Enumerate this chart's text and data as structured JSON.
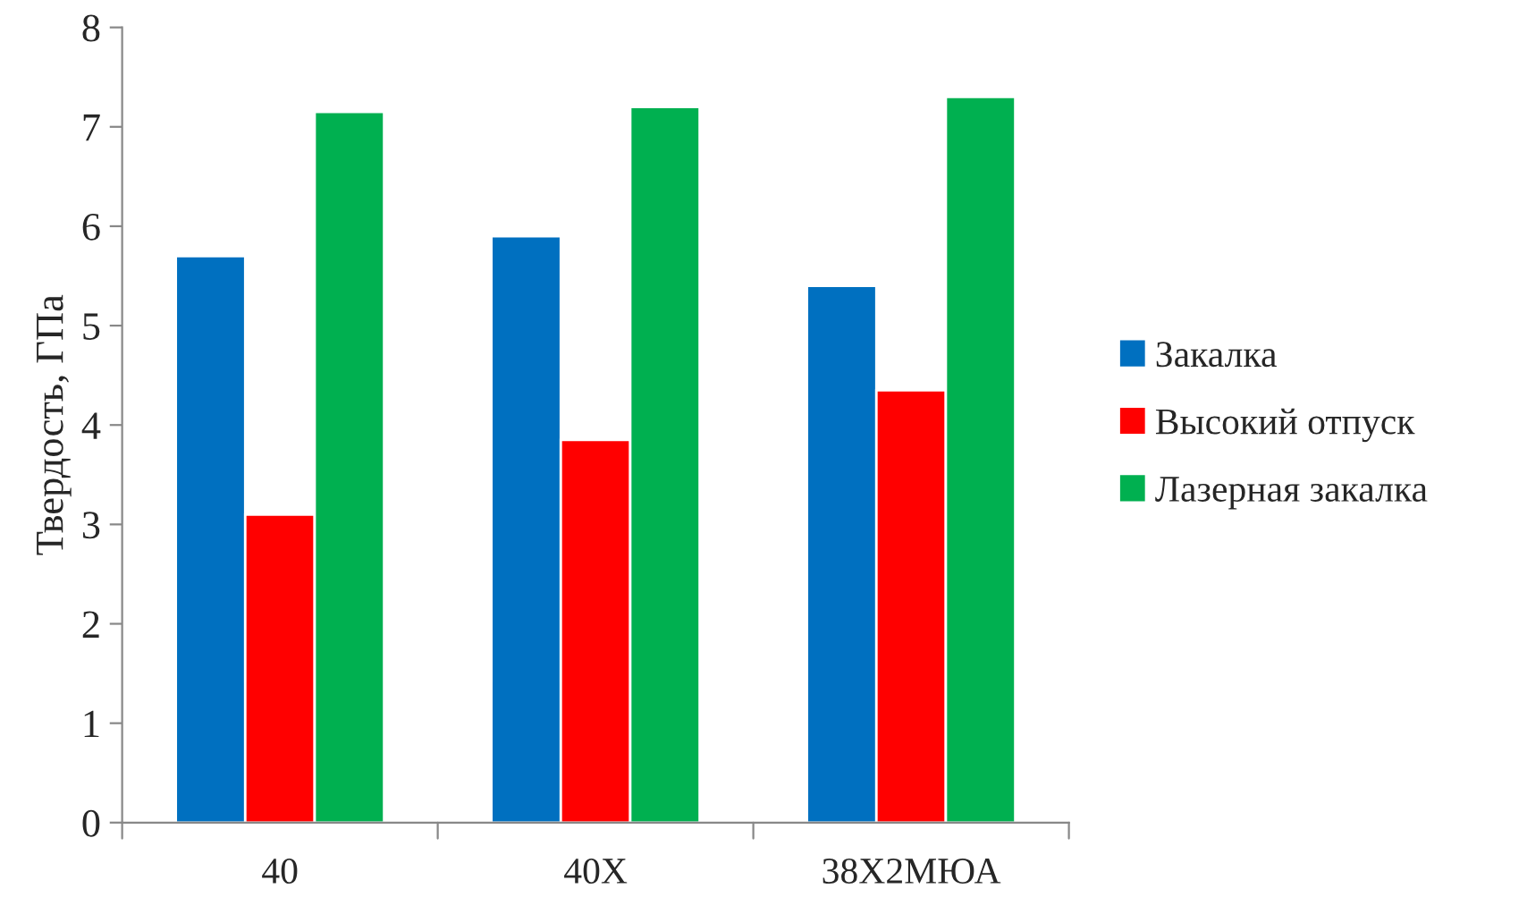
{
  "chart_data": {
    "type": "bar",
    "ylabel": "Твердость, ГПа",
    "categories": [
      "40",
      "40X",
      "38X2MЮА"
    ],
    "series": [
      {
        "name": "Закалка",
        "color": "#0070c0",
        "values": [
          5.7,
          5.9,
          5.4
        ]
      },
      {
        "name": "Высокий отпуск",
        "color": "#ff0000",
        "values": [
          3.1,
          3.85,
          4.35
        ]
      },
      {
        "name": "Лазерная закалка",
        "color": "#00b050",
        "values": [
          7.15,
          7.2,
          7.3
        ]
      }
    ],
    "ylim": [
      0,
      8
    ],
    "yticks": [
      0,
      1,
      2,
      3,
      4,
      5,
      6,
      7,
      8
    ],
    "grid": false,
    "legend": "right"
  }
}
